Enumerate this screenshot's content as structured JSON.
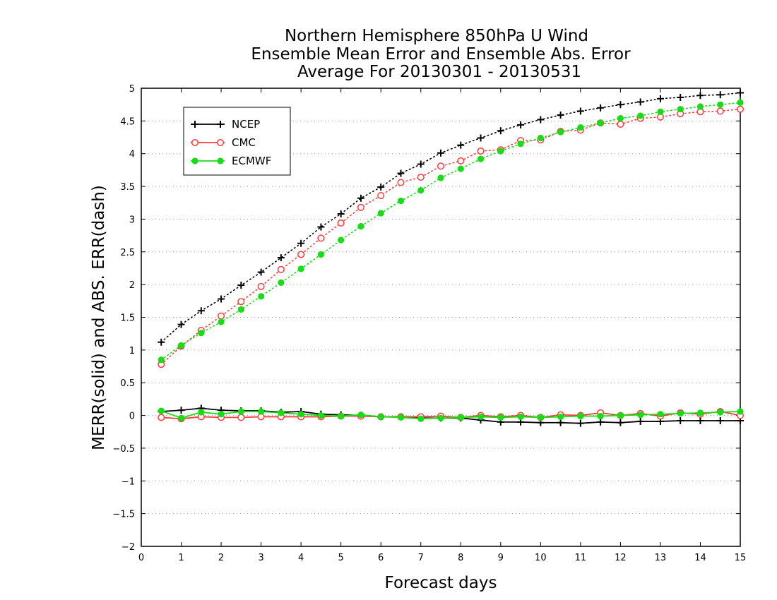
{
  "chart_data": {
    "type": "line",
    "title": [
      "Northern Hemisphere 850hPa U Wind",
      "Ensemble Mean Error and Ensemble Abs. Error",
      "Average For 20130301 - 20130531"
    ],
    "xlabel": "Forecast days",
    "ylabel": "MERR(solid) and ABS. ERR(dash)",
    "xlim": [
      0,
      15
    ],
    "ylim": [
      -2,
      5
    ],
    "xticks": [
      "0",
      "1",
      "2",
      "3",
      "4",
      "5",
      "6",
      "7",
      "8",
      "9",
      "10",
      "11",
      "12",
      "13",
      "14",
      "15"
    ],
    "yticks": [
      "−2",
      "−1.5",
      "−1",
      "−0.5",
      "0",
      "0.5",
      "1",
      "1.5",
      "2",
      "2.5",
      "3",
      "3.5",
      "4",
      "4.5",
      "5"
    ],
    "grid": "dotted horizontal",
    "legend_position": "top-left",
    "x": [
      0.5,
      1,
      1.5,
      2,
      2.5,
      3,
      3.5,
      4,
      4.5,
      5,
      5.5,
      6,
      6.5,
      7,
      7.5,
      8,
      8.5,
      9,
      9.5,
      10,
      10.5,
      11,
      11.5,
      12,
      12.5,
      13,
      13.5,
      14,
      14.5,
      15
    ],
    "series": [
      {
        "name": "NCEP",
        "color": "#000000",
        "marker": "plus",
        "abs_error": [
          1.12,
          1.39,
          1.6,
          1.78,
          1.99,
          2.19,
          2.41,
          2.63,
          2.88,
          3.08,
          3.32,
          3.49,
          3.7,
          3.84,
          4.01,
          4.13,
          4.24,
          4.35,
          4.44,
          4.52,
          4.59,
          4.65,
          4.7,
          4.75,
          4.79,
          4.84,
          4.86,
          4.89,
          4.9,
          4.93
        ],
        "mean_error": [
          0.06,
          0.08,
          0.11,
          0.08,
          0.07,
          0.07,
          0.05,
          0.06,
          0.02,
          0.01,
          0.0,
          -0.02,
          -0.02,
          -0.04,
          -0.04,
          -0.04,
          -0.07,
          -0.1,
          -0.1,
          -0.11,
          -0.11,
          -0.12,
          -0.1,
          -0.11,
          -0.09,
          -0.09,
          -0.08,
          -0.08,
          -0.08,
          -0.08
        ]
      },
      {
        "name": "CMC",
        "color": "#ff3b3b",
        "marker": "circle-open",
        "abs_error": [
          0.78,
          1.06,
          1.3,
          1.52,
          1.74,
          1.97,
          2.23,
          2.46,
          2.71,
          2.94,
          3.18,
          3.36,
          3.56,
          3.64,
          3.81,
          3.89,
          4.04,
          4.06,
          4.2,
          4.21,
          4.34,
          4.36,
          4.47,
          4.45,
          4.54,
          4.56,
          4.61,
          4.64,
          4.65,
          4.68
        ],
        "mean_error": [
          -0.03,
          -0.05,
          -0.02,
          -0.03,
          -0.03,
          -0.02,
          -0.02,
          -0.02,
          -0.02,
          -0.01,
          -0.01,
          -0.02,
          -0.02,
          -0.02,
          -0.01,
          -0.03,
          0.0,
          -0.02,
          0.0,
          -0.03,
          0.01,
          0.0,
          0.04,
          0.0,
          0.03,
          -0.01,
          0.04,
          0.02,
          0.06,
          0.0
        ]
      },
      {
        "name": "ECMWF",
        "color": "#17dd17",
        "marker": "circle-filled",
        "abs_error": [
          0.85,
          1.07,
          1.26,
          1.43,
          1.62,
          1.82,
          2.03,
          2.24,
          2.46,
          2.68,
          2.89,
          3.09,
          3.28,
          3.44,
          3.63,
          3.77,
          3.92,
          4.04,
          4.15,
          4.24,
          4.33,
          4.4,
          4.47,
          4.54,
          4.58,
          4.64,
          4.68,
          4.72,
          4.75,
          4.78
        ],
        "mean_error": [
          0.07,
          -0.04,
          0.05,
          0.02,
          0.06,
          0.06,
          0.04,
          0.02,
          0.0,
          -0.01,
          0.01,
          -0.02,
          -0.03,
          -0.05,
          -0.04,
          -0.03,
          -0.02,
          -0.03,
          -0.02,
          -0.03,
          -0.02,
          -0.01,
          -0.01,
          0.0,
          0.01,
          0.02,
          0.03,
          0.04,
          0.05,
          0.06
        ]
      }
    ]
  }
}
